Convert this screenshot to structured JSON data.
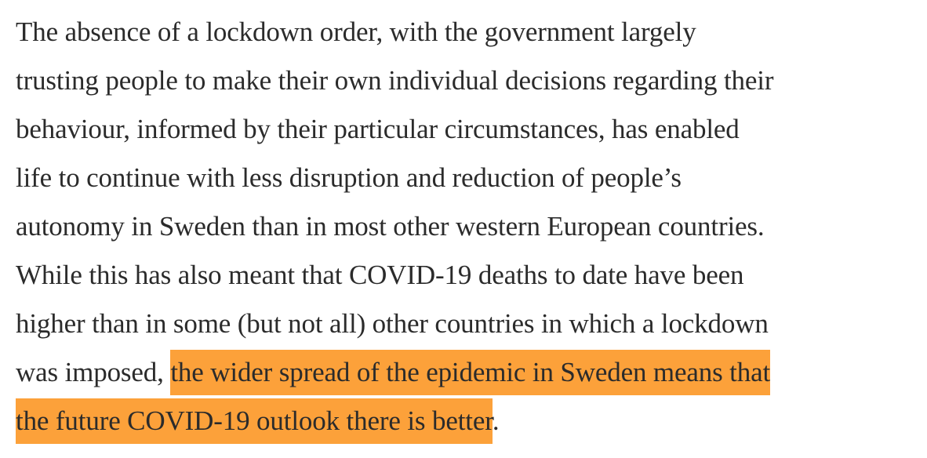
{
  "article": {
    "lines": [
      "The absence of a lockdown order, with the government largely",
      "trusting people to make their own individual decisions regarding their",
      "behaviour, informed by their particular circumstances, has enabled",
      "life to continue with less disruption and reduction of people’s",
      "autonomy in Sweden than in most other western European countries.",
      "While this has also meant that COVID-19 deaths to date have been",
      "higher than in some (but not all) other countries in which a lockdown"
    ],
    "line8_plain": "was imposed, ",
    "highlight_line1": "the wider spread of the epidemic in Sweden means that",
    "highlight_line2": "the future COVID-19 outlook there is better",
    "trailing": ".",
    "highlight_color": "#fca13a",
    "text_color": "#2b2b2b"
  }
}
